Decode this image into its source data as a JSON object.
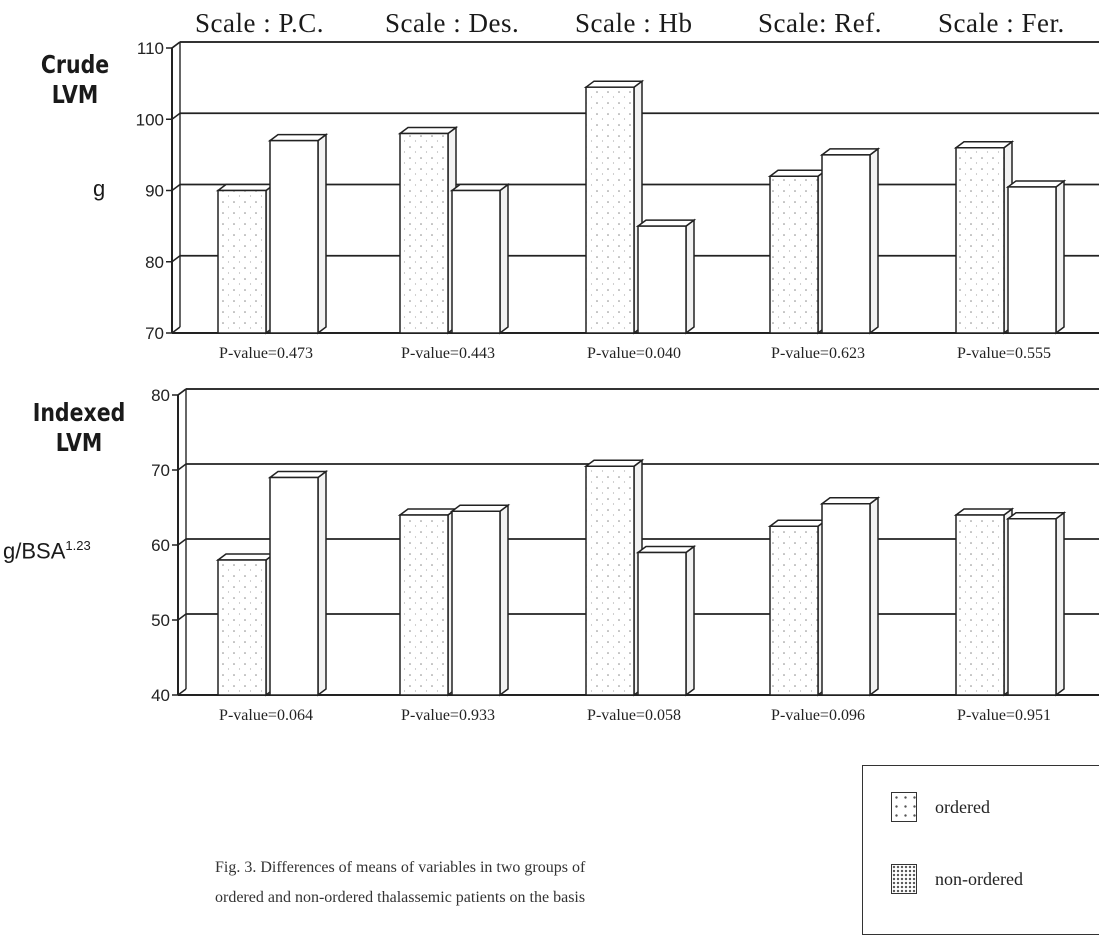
{
  "scales": [
    "Scale : P.C.",
    "Scale : Des.",
    "Scale : Hb",
    "Scale: Ref.",
    "Scale : Fer."
  ],
  "panels": {
    "crude": {
      "label_line1": "Crude",
      "label_line2": "LVM",
      "unit": "g"
    },
    "indexed": {
      "label_line1": "Indexed",
      "label_line2": "LVM",
      "unit_base": "g/BSA",
      "unit_exp": "1.23"
    }
  },
  "legend": {
    "ordered": "ordered",
    "non_ordered": "non-ordered"
  },
  "caption": {
    "line1": "Fig. 3. Differences of means of variables in two groups of",
    "line2": "ordered and non-ordered thalassemic patients on the basis"
  },
  "chart_data": [
    {
      "type": "bar",
      "categories": [
        "P.C.",
        "Des.",
        "Hb",
        "Ref.",
        "Fer."
      ],
      "series": [
        {
          "name": "ordered",
          "values": [
            90,
            98,
            104.5,
            92,
            96
          ]
        },
        {
          "name": "non-ordered",
          "values": [
            97,
            90,
            85,
            95,
            90.5
          ]
        }
      ],
      "ylim": [
        70,
        110
      ],
      "yticks": [
        "70",
        "80",
        "90",
        "100",
        "110"
      ],
      "annotations": [
        "P-value=0.473",
        "P-value=0.443",
        "P-value=0.040",
        "P-value=0.623",
        "P-value=0.555"
      ],
      "grid": true
    },
    {
      "type": "bar",
      "categories": [
        "P.C.",
        "Des.",
        "Hb",
        "Ref.",
        "Fer."
      ],
      "series": [
        {
          "name": "ordered",
          "values": [
            58,
            64,
            70.5,
            62.5,
            64
          ]
        },
        {
          "name": "non-ordered",
          "values": [
            69,
            64.5,
            59,
            65.5,
            63.5
          ]
        }
      ],
      "ylim": [
        40,
        80
      ],
      "yticks": [
        "40",
        "50",
        "60",
        "70",
        "80"
      ],
      "annotations": [
        "P-value=0.064",
        "P-value=0.933",
        "P-value=0.058",
        "P-value=0.096",
        "P-value=0.951"
      ],
      "grid": true
    }
  ]
}
